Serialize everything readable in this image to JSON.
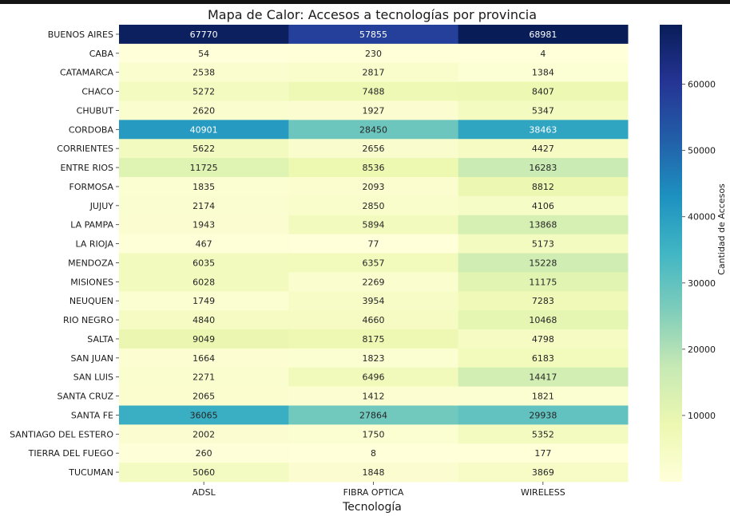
{
  "chart_data": {
    "type": "heatmap",
    "title": "Mapa de Calor: Accesos a tecnologías por provincia",
    "xlabel": "Tecnología",
    "ylabel": "",
    "colorbar_label": "Cantidad de Accesos",
    "colormap": "YlGnBu",
    "colorbar_range": [
      0,
      68981
    ],
    "colorbar_ticks": [
      10000,
      20000,
      30000,
      40000,
      50000,
      60000
    ],
    "colorbar_tick_labels": [
      "10000",
      "20000",
      "30000",
      "40000",
      "50000",
      "60000"
    ],
    "columns": [
      "ADSL",
      "FIBRA OPTICA",
      "WIRELESS"
    ],
    "rows": [
      "BUENOS AIRES",
      "CABA",
      "CATAMARCA",
      "CHACO",
      "CHUBUT",
      "CORDOBA",
      "CORRIENTES",
      "ENTRE RIOS",
      "FORMOSA",
      "JUJUY",
      "LA PAMPA",
      "LA RIOJA",
      "MENDOZA",
      "MISIONES",
      "NEUQUEN",
      "RIO NEGRO",
      "SALTA",
      "SAN JUAN",
      "SAN LUIS",
      "SANTA CRUZ",
      "SANTA FE",
      "SANTIAGO DEL ESTERO",
      "TIERRA DEL FUEGO",
      "TUCUMAN"
    ],
    "values": [
      [
        67770,
        57855,
        68981
      ],
      [
        54,
        230,
        4
      ],
      [
        2538,
        2817,
        1384
      ],
      [
        5272,
        7488,
        8407
      ],
      [
        2620,
        1927,
        5347
      ],
      [
        40901,
        28450,
        38463
      ],
      [
        5622,
        2656,
        4427
      ],
      [
        11725,
        8536,
        16283
      ],
      [
        1835,
        2093,
        8812
      ],
      [
        2174,
        2850,
        4106
      ],
      [
        1943,
        5894,
        13868
      ],
      [
        467,
        77,
        5173
      ],
      [
        6035,
        6357,
        15228
      ],
      [
        6028,
        2269,
        11175
      ],
      [
        1749,
        3954,
        7283
      ],
      [
        4840,
        4660,
        10468
      ],
      [
        9049,
        8175,
        4798
      ],
      [
        1664,
        1823,
        6183
      ],
      [
        2271,
        6496,
        14417
      ],
      [
        2065,
        1412,
        1821
      ],
      [
        36065,
        27864,
        29938
      ],
      [
        2002,
        1750,
        5352
      ],
      [
        260,
        8,
        177
      ],
      [
        5060,
        1848,
        3869
      ]
    ]
  }
}
